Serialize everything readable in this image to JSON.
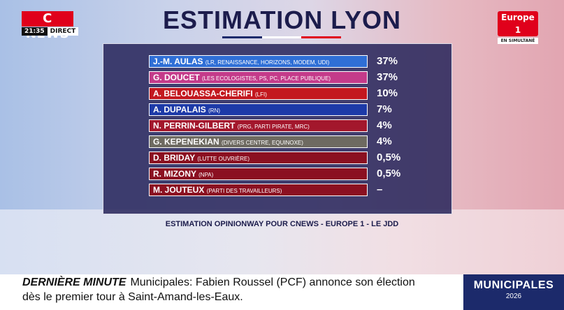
{
  "channel": {
    "logo": "C NEWS",
    "time": "21:35",
    "live": "DIRECT"
  },
  "partner": {
    "logo": "Europe 1",
    "note": "EN SIMULTANÉ"
  },
  "title": "ESTIMATION LYON",
  "underline_colors": [
    "#1c2a6b",
    "#ffffff",
    "#e0001b"
  ],
  "candidates": [
    {
      "name": "J.-M. AULAS",
      "party": "(LR, RENAISSANCE, HORIZONS, MODEM, UDI)",
      "pct": "37%",
      "color": "#2f6fd6"
    },
    {
      "name": "G. DOUCET",
      "party": "(LES ECOLOGISTES, PS, PC, PLACE PUBLIQUE)",
      "pct": "37%",
      "color": "#c43b8a"
    },
    {
      "name": "A. BELOUASSA-CHERIFI",
      "party": "(LFI)",
      "pct": "10%",
      "color": "#c3181f"
    },
    {
      "name": "A. DUPALAIS",
      "party": "(RN)",
      "pct": "7%",
      "color": "#1d3aa8"
    },
    {
      "name": "N. PERRIN-GILBERT",
      "party": "(PRG, PARTI PIRATE, MRC)",
      "pct": "4%",
      "color": "#a3172c"
    },
    {
      "name": "G. KEPENEKIAN",
      "party": "(DIVERS CENTRE, EQUINOXE)",
      "pct": "4%",
      "color": "#6e6a61"
    },
    {
      "name": "D. BRIDAY",
      "party": "(LUTTE OUVRIÈRE)",
      "pct": "0,5%",
      "color": "#8b1021"
    },
    {
      "name": "R. MIZONY",
      "party": "(NPA)",
      "pct": "0,5%",
      "color": "#8b1021"
    },
    {
      "name": "M. JOUTEUX",
      "party": "(PARTI DES TRAVAILLEURS)",
      "pct": "–",
      "color": "#8b1021"
    }
  ],
  "source": "ESTIMATION OPINIONWAY POUR CNEWS - EUROPE 1 - LE JDD",
  "ticker": {
    "label": "DERNIÈRE MINUTE",
    "text1": "Municipales: Fabien Roussel (PCF) annonce son élection",
    "text2": "dès le premier tour à Saint-Amand-les-Eaux."
  },
  "badge": {
    "title": "MUNICIPALES",
    "year": "2026"
  }
}
